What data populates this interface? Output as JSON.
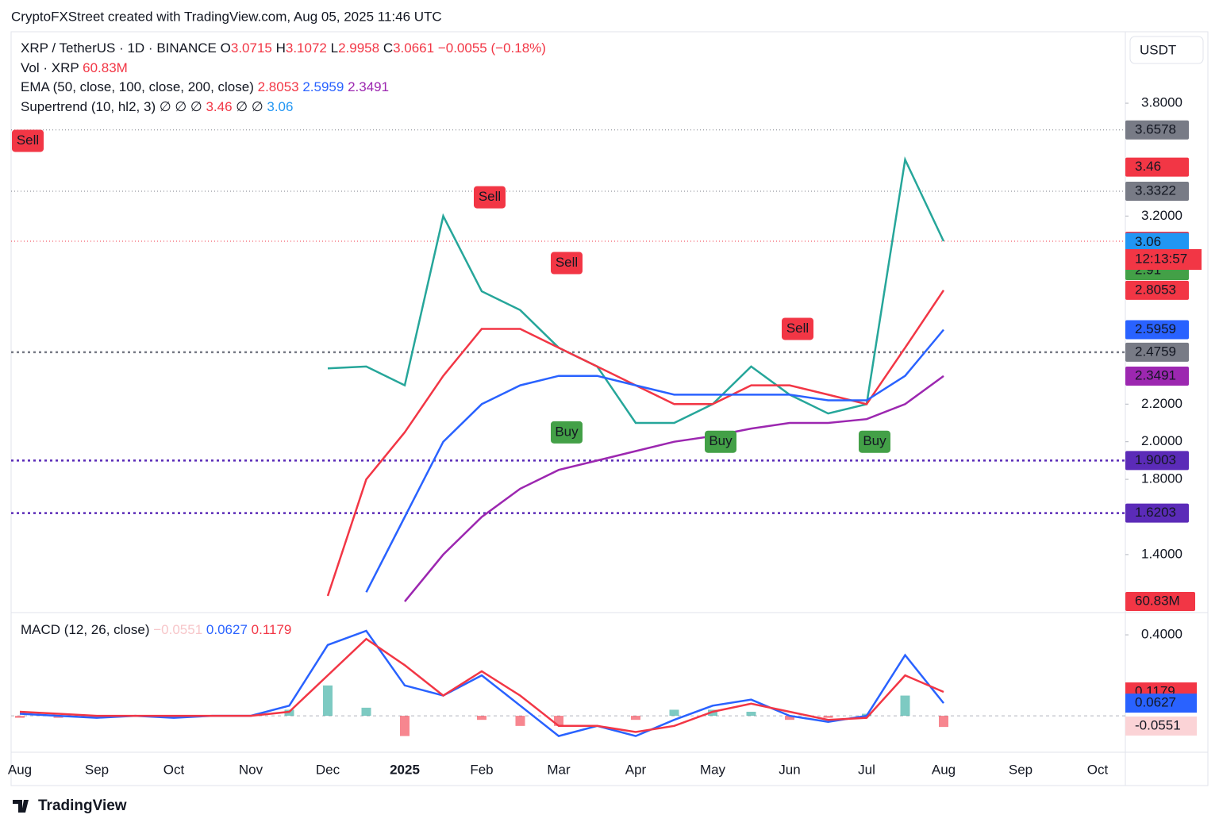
{
  "header": {
    "credit": "CryptoFXStreet created with TradingView.com, Aug 05, 2025 11:46 UTC",
    "currency": "USDT"
  },
  "legend": {
    "symbol": "XRP / TetherUS · 1D · BINANCE",
    "open_key": "O",
    "open": "3.0715",
    "high_key": "H",
    "high": "3.1072",
    "low_key": "L",
    "low": "2.9958",
    "close_key": "C",
    "close": "3.0661",
    "change": "−0.0055 (−0.18%)",
    "vol": "Vol · XRP",
    "vol_value": "60.83M",
    "ema": "EMA (50, close, 100, close, 200, close)",
    "ema50": "2.8053",
    "ema100": "2.5959",
    "ema200": "2.3491",
    "supertrend": "Supertrend (10, hl2, 3)",
    "st_empty": "∅ ∅ ∅",
    "st_up": "3.46",
    "st_empty2": "∅ ∅",
    "st_down": "3.06",
    "macd": "MACD (12, 26, close)",
    "macd_hist": "−0.0551",
    "macd_line": "0.0627",
    "macd_signal": "0.1179"
  },
  "footer": {
    "brand": "TradingView"
  },
  "chart_data": [
    {
      "type": "line",
      "title": "XRP / TetherUS",
      "categories": [
        "Aug",
        null,
        "Sep",
        null,
        "Oct",
        null,
        "Nov",
        null,
        "Dec",
        null,
        "2025",
        null,
        "Feb",
        null,
        "Mar",
        null,
        "Apr",
        null,
        "May",
        null,
        "Jun",
        null,
        "Jul",
        null,
        "Aug",
        null,
        "Sep",
        null,
        "Oct",
        null
      ],
      "series": [
        {
          "name": "Price",
          "color": "#26a69a",
          "values": [
            null,
            null,
            null,
            null,
            null,
            null,
            null,
            null,
            2.39,
            2.4,
            2.3,
            3.2,
            2.8,
            2.7,
            2.5,
            2.4,
            2.1,
            2.1,
            2.2,
            2.4,
            2.25,
            2.15,
            2.2,
            3.5,
            3.0661,
            null,
            null,
            null,
            null,
            null
          ]
        },
        {
          "name": "EMA 50",
          "color": "#f23645",
          "values": [
            null,
            null,
            null,
            null,
            null,
            null,
            null,
            null,
            1.18,
            1.8,
            2.05,
            2.35,
            2.6,
            2.6,
            2.5,
            2.4,
            2.3,
            2.2,
            2.2,
            2.3,
            2.3,
            2.25,
            2.2,
            2.5,
            2.8053,
            null,
            null,
            null,
            null,
            null
          ]
        },
        {
          "name": "EMA 100",
          "color": "#2962ff",
          "values": [
            null,
            null,
            null,
            null,
            null,
            null,
            null,
            null,
            null,
            1.2,
            1.6,
            2.0,
            2.2,
            2.3,
            2.35,
            2.35,
            2.3,
            2.25,
            2.25,
            2.25,
            2.25,
            2.22,
            2.22,
            2.35,
            2.5959,
            null,
            null,
            null,
            null,
            null
          ]
        },
        {
          "name": "EMA 200",
          "color": "#9c27b0",
          "values": [
            null,
            null,
            null,
            null,
            null,
            null,
            null,
            null,
            null,
            null,
            1.15,
            1.4,
            1.6,
            1.75,
            1.85,
            1.9,
            1.95,
            2.0,
            2.03,
            2.07,
            2.1,
            2.1,
            2.12,
            2.2,
            2.3491,
            null,
            null,
            null,
            null,
            null
          ]
        }
      ],
      "ylim": [
        1.1,
        4.18
      ],
      "yticks": [
        {
          "value": 1.4,
          "label": "1.4000"
        },
        {
          "value": 1.8,
          "label": "1.8000"
        },
        {
          "value": 2.0,
          "label": "2.0000"
        },
        {
          "value": 2.2,
          "label": "2.2000"
        },
        {
          "value": 3.2,
          "label": "3.2000"
        },
        {
          "value": 3.8,
          "label": "3.8000"
        }
      ],
      "levels": [
        {
          "value": 3.6578,
          "color": "#787b86",
          "style": "dotted"
        },
        {
          "value": 3.3322,
          "color": "#787b86",
          "style": "dotted"
        },
        {
          "value": 3.0661,
          "color": "#f23645",
          "style": "dotted"
        },
        {
          "value": 2.4759,
          "color": "#787b86",
          "style": "dashed"
        },
        {
          "value": 1.9003,
          "color": "#5b2bb8",
          "style": "dashed"
        },
        {
          "value": 1.6203,
          "color": "#5b2bb8",
          "style": "dashed"
        }
      ],
      "price_labels": [
        {
          "value": 3.6578,
          "color": "#787b86"
        },
        {
          "value": 3.46,
          "color": "#f23645"
        },
        {
          "value": 3.3322,
          "color": "#787b86"
        },
        {
          "value": 3.0661,
          "color": "#f23645"
        },
        {
          "value": 3.06,
          "color": "#2196f3"
        },
        {
          "value": 2.91,
          "color": "#43a047"
        },
        {
          "value": 2.8053,
          "color": "#f23645"
        },
        {
          "value": 2.5959,
          "color": "#2962ff"
        },
        {
          "value": 2.4759,
          "color": "#787b86"
        },
        {
          "value": 2.3491,
          "color": "#9c27b0"
        },
        {
          "value": 1.9003,
          "color": "#5b2bb8"
        },
        {
          "value": 1.6203,
          "color": "#5b2bb8"
        }
      ],
      "countdown": "12:13:57",
      "signals": [
        {
          "text": "Sell",
          "category": "Feb",
          "value": 3.3
        },
        {
          "text": "Sell",
          "category": "Mar",
          "value": 2.95
        },
        {
          "text": "Sell",
          "category": "Jun",
          "value": 2.6
        },
        {
          "text": "Sell",
          "category": "Aug",
          "value": 3.6
        },
        {
          "text": "Buy",
          "category": "Mar",
          "value": 2.05
        },
        {
          "text": "Buy",
          "category": "May",
          "value": 2.0
        },
        {
          "text": "Buy",
          "category": "Jul",
          "value": 2.0
        }
      ]
    },
    {
      "type": "macd",
      "series": [
        {
          "name": "MACD",
          "color": "#2962ff",
          "values": [
            0.01,
            0.0,
            -0.01,
            0.0,
            -0.01,
            0.0,
            0.0,
            0.05,
            0.35,
            0.42,
            0.15,
            0.1,
            0.2,
            0.05,
            -0.1,
            -0.05,
            -0.1,
            -0.02,
            0.05,
            0.08,
            0.0,
            -0.03,
            0.0,
            0.3,
            0.0627,
            null,
            null,
            null,
            null,
            null
          ]
        },
        {
          "name": "Signal",
          "color": "#f23645",
          "values": [
            0.02,
            0.01,
            0.0,
            0.0,
            0.0,
            0.0,
            0.0,
            0.02,
            0.2,
            0.38,
            0.25,
            0.1,
            0.22,
            0.1,
            -0.05,
            -0.05,
            -0.08,
            -0.05,
            0.02,
            0.06,
            0.02,
            -0.02,
            -0.01,
            0.2,
            0.1179,
            null,
            null,
            null,
            null,
            null
          ]
        },
        {
          "name": "Histogram",
          "color": "#26a69a",
          "negative_color": "#f23645",
          "values": [
            -0.01,
            -0.01,
            -0.01,
            0.0,
            -0.01,
            0.0,
            0.0,
            0.03,
            0.15,
            0.04,
            -0.1,
            0.0,
            -0.02,
            -0.05,
            -0.05,
            0.0,
            -0.02,
            0.03,
            0.03,
            0.02,
            -0.02,
            -0.01,
            0.01,
            0.1,
            -0.0551,
            null,
            null,
            null,
            null,
            null
          ]
        }
      ],
      "ylim": [
        -0.18,
        0.51
      ],
      "yticks": [
        {
          "value": 0.4,
          "label": "0.4000"
        }
      ]
    }
  ]
}
